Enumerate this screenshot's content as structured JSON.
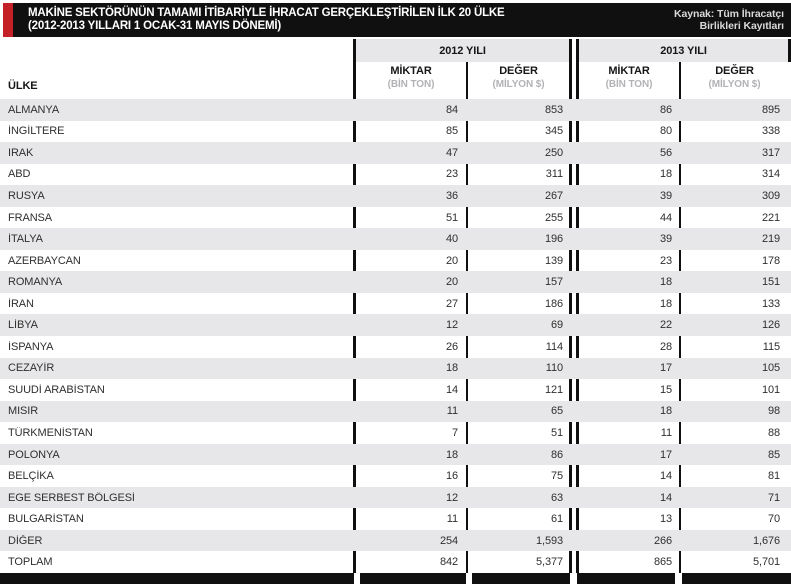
{
  "header": {
    "title_line1": "MAKİNE SEKTÖRÜNÜN TAMAMI İTİBARİYLE İHRACAT GERÇEKLEŞTİRİLEN İLK 20 ÜLKE",
    "title_line2": "(2012-2013 YILLARI 1 OCAK-31 MAYIS DÖNEMİ)",
    "source_line1": "Kaynak: Tüm İhracatçı",
    "source_line2": "Birlikleri Kayıtları"
  },
  "table": {
    "country_header": "ÜLKE",
    "year_groups": [
      "2012 YILI",
      "2013 YILI"
    ],
    "sub_headers": [
      {
        "label": "MİKTAR",
        "unit": "(BİN TON)"
      },
      {
        "label": "DEĞER",
        "unit": "(MİLYON $)"
      },
      {
        "label": "MİKTAR",
        "unit": "(BİN TON)"
      },
      {
        "label": "DEĞER",
        "unit": "(MİLYON $)"
      }
    ],
    "rows": [
      {
        "country": "ALMANYA",
        "values": [
          "84",
          "853",
          "86",
          "895"
        ]
      },
      {
        "country": "İNGİLTERE",
        "values": [
          "85",
          "345",
          "80",
          "338"
        ]
      },
      {
        "country": "IRAK",
        "values": [
          "47",
          "250",
          "56",
          "317"
        ]
      },
      {
        "country": "ABD",
        "values": [
          "23",
          "311",
          "18",
          "314"
        ]
      },
      {
        "country": "RUSYA",
        "values": [
          "36",
          "267",
          "39",
          "309"
        ]
      },
      {
        "country": "FRANSA",
        "values": [
          "51",
          "255",
          "44",
          "221"
        ]
      },
      {
        "country": "İTALYA",
        "values": [
          "40",
          "196",
          "39",
          "219"
        ]
      },
      {
        "country": "AZERBAYCAN",
        "values": [
          "20",
          "139",
          "23",
          "178"
        ]
      },
      {
        "country": "ROMANYA",
        "values": [
          "20",
          "157",
          "18",
          "151"
        ]
      },
      {
        "country": "İRAN",
        "values": [
          "27",
          "186",
          "18",
          "133"
        ]
      },
      {
        "country": "LİBYA",
        "values": [
          "12",
          "69",
          "22",
          "126"
        ]
      },
      {
        "country": "İSPANYA",
        "values": [
          "26",
          "114",
          "28",
          "115"
        ]
      },
      {
        "country": "CEZAYİR",
        "values": [
          "18",
          "110",
          "17",
          "105"
        ]
      },
      {
        "country": "SUUDİ ARABİSTAN",
        "values": [
          "14",
          "121",
          "15",
          "101"
        ]
      },
      {
        "country": "MISIR",
        "values": [
          "11",
          "65",
          "18",
          "98"
        ]
      },
      {
        "country": "TÜRKMENİSTAN",
        "values": [
          "7",
          "51",
          "11",
          "88"
        ]
      },
      {
        "country": "POLONYA",
        "values": [
          "18",
          "86",
          "17",
          "85"
        ]
      },
      {
        "country": "BELÇİKA",
        "values": [
          "16",
          "75",
          "14",
          "81"
        ]
      },
      {
        "country": "EGE SERBEST BÖLGESİ",
        "values": [
          "12",
          "63",
          "14",
          "71"
        ]
      },
      {
        "country": "BULGARİSTAN",
        "values": [
          "11",
          "61",
          "13",
          "70"
        ]
      },
      {
        "country": "DİĞER",
        "values": [
          "254",
          "1,593",
          "266",
          "1,676"
        ]
      },
      {
        "country": "TOPLAM",
        "values": [
          "842",
          "5,377",
          "865",
          "5,701"
        ]
      }
    ]
  },
  "colors": {
    "black": "#101010",
    "accent": "#c42127",
    "stripe": "#e7e7e9",
    "unit_gray": "#b2b2b6",
    "text": "#2f2f2f",
    "source_gray": "#d9d9d9"
  },
  "chart_data": {
    "type": "table",
    "title": "MAKİNE SEKTÖRÜNÜN TAMAMI İTİBARİYLE İHRACAT GERÇEKLEŞTİRİLEN İLK 20 ÜLKE (2012-2013 YILLARI 1 OCAK-31 MAYIS DÖNEMİ)",
    "source": "Kaynak: Tüm İhracatçı Birlikleri Kayıtları",
    "categories": [
      "ALMANYA",
      "İNGİLTERE",
      "IRAK",
      "ABD",
      "RUSYA",
      "FRANSA",
      "İTALYA",
      "AZERBAYCAN",
      "ROMANYA",
      "İRAN",
      "LİBYA",
      "İSPANYA",
      "CEZAYİR",
      "SUUDİ ARABİSTAN",
      "MISIR",
      "TÜRKMENİSTAN",
      "POLONYA",
      "BELÇİKA",
      "EGE SERBEST BÖLGESİ",
      "BULGARİSTAN",
      "DİĞER",
      "TOPLAM"
    ],
    "series": [
      {
        "name": "2012 YILI MİKTAR (BİN TON)",
        "values": [
          84,
          85,
          47,
          23,
          36,
          51,
          40,
          20,
          20,
          27,
          12,
          26,
          18,
          14,
          11,
          7,
          18,
          16,
          12,
          11,
          254,
          842
        ]
      },
      {
        "name": "2012 YILI DEĞER (MİLYON $)",
        "values": [
          853,
          345,
          250,
          311,
          267,
          255,
          196,
          139,
          157,
          186,
          69,
          114,
          110,
          121,
          65,
          51,
          86,
          75,
          63,
          61,
          1593,
          5377
        ]
      },
      {
        "name": "2013 YILI MİKTAR (BİN TON)",
        "values": [
          86,
          80,
          56,
          18,
          39,
          44,
          39,
          23,
          18,
          18,
          22,
          28,
          17,
          15,
          18,
          11,
          17,
          14,
          14,
          13,
          266,
          865
        ]
      },
      {
        "name": "2013 YILI DEĞER (MİLYON $)",
        "values": [
          895,
          338,
          317,
          314,
          309,
          221,
          219,
          178,
          151,
          133,
          126,
          115,
          105,
          101,
          98,
          88,
          85,
          81,
          71,
          70,
          1676,
          5701
        ]
      }
    ]
  }
}
